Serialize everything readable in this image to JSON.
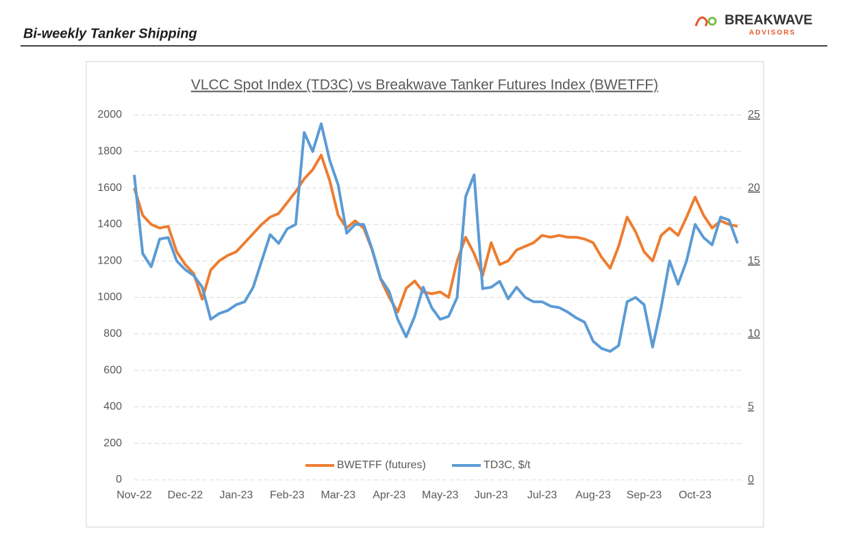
{
  "header": {
    "title": "Bi-weekly Tanker Shipping",
    "logo": "BREAKWAVE",
    "logo_sub": "ADVISORS"
  },
  "chart_data": {
    "type": "line",
    "title": "VLCC Spot Index (TD3C) vs Breakwave Tanker  Futures Index (BWETFF)",
    "categories": [
      "Nov-22",
      null,
      null,
      null,
      null,
      null,
      "Dec-22",
      null,
      null,
      null,
      null,
      null,
      "Jan-23",
      null,
      null,
      null,
      null,
      null,
      "Feb-23",
      null,
      null,
      null,
      null,
      null,
      "Mar-23",
      null,
      null,
      null,
      null,
      null,
      "Apr-23",
      null,
      null,
      null,
      null,
      null,
      "May-23",
      null,
      null,
      null,
      null,
      null,
      "Jun-23",
      null,
      null,
      null,
      null,
      null,
      "Jul-23",
      null,
      null,
      null,
      null,
      null,
      "Aug-23",
      null,
      null,
      null,
      null,
      null,
      "Sep-23",
      null,
      null,
      null,
      null,
      null,
      "Oct-23",
      null,
      null,
      null,
      null,
      null
    ],
    "series": [
      {
        "name": "BWETFF (futures)",
        "color": "#ed7d31",
        "axis": "y",
        "values": [
          1600,
          1450,
          1400,
          1380,
          1390,
          1250,
          1180,
          1130,
          990,
          1150,
          1200,
          1230,
          1250,
          1300,
          1350,
          1400,
          1440,
          1460,
          1520,
          1580,
          1650,
          1700,
          1780,
          1640,
          1450,
          1380,
          1420,
          1380,
          1260,
          1100,
          1000,
          920,
          1050,
          1090,
          1030,
          1020,
          1030,
          1000,
          1200,
          1330,
          1240,
          1120,
          1300,
          1180,
          1200,
          1260,
          1280,
          1300,
          1340,
          1330,
          1340,
          1330,
          1330,
          1320,
          1300,
          1220,
          1160,
          1280,
          1440,
          1360,
          1250,
          1200,
          1340,
          1380,
          1340,
          1440,
          1550,
          1450,
          1380,
          1420,
          1400,
          1390
        ]
      },
      {
        "name": "TD3C, $/t",
        "color": "#5b9bd5",
        "axis": "y2",
        "values": [
          20.9,
          15.5,
          14.6,
          16.5,
          16.6,
          15,
          14.4,
          14,
          13.2,
          11,
          11.4,
          11.6,
          12,
          12.2,
          13.2,
          15,
          16.8,
          16.2,
          17.2,
          17.5,
          23.8,
          22.5,
          24.4,
          21.9,
          20.2,
          16.9,
          17.5,
          17.5,
          15.8,
          13.8,
          12.9,
          11,
          9.8,
          11.2,
          13.2,
          11.8,
          11,
          11.2,
          12.5,
          19.4,
          20.9,
          13.1,
          13.2,
          13.6,
          12.4,
          13.2,
          12.5,
          12.2,
          12.2,
          11.9,
          11.8,
          11.5,
          11.1,
          10.8,
          9.5,
          9,
          8.8,
          9.2,
          12.2,
          12.5,
          12,
          9.1,
          11.8,
          15,
          13.4,
          15,
          17.5,
          16.6,
          16.1,
          18,
          17.8,
          16.2
        ]
      }
    ],
    "ylim": [
      0,
      2000
    ],
    "yticks": [
      0,
      200,
      400,
      600,
      800,
      1000,
      1200,
      1400,
      1600,
      1800,
      2000
    ],
    "y2lim": [
      0,
      25
    ],
    "y2ticks": [
      0,
      5,
      10,
      15,
      20,
      25
    ],
    "grid": true,
    "legend": "bottom"
  }
}
